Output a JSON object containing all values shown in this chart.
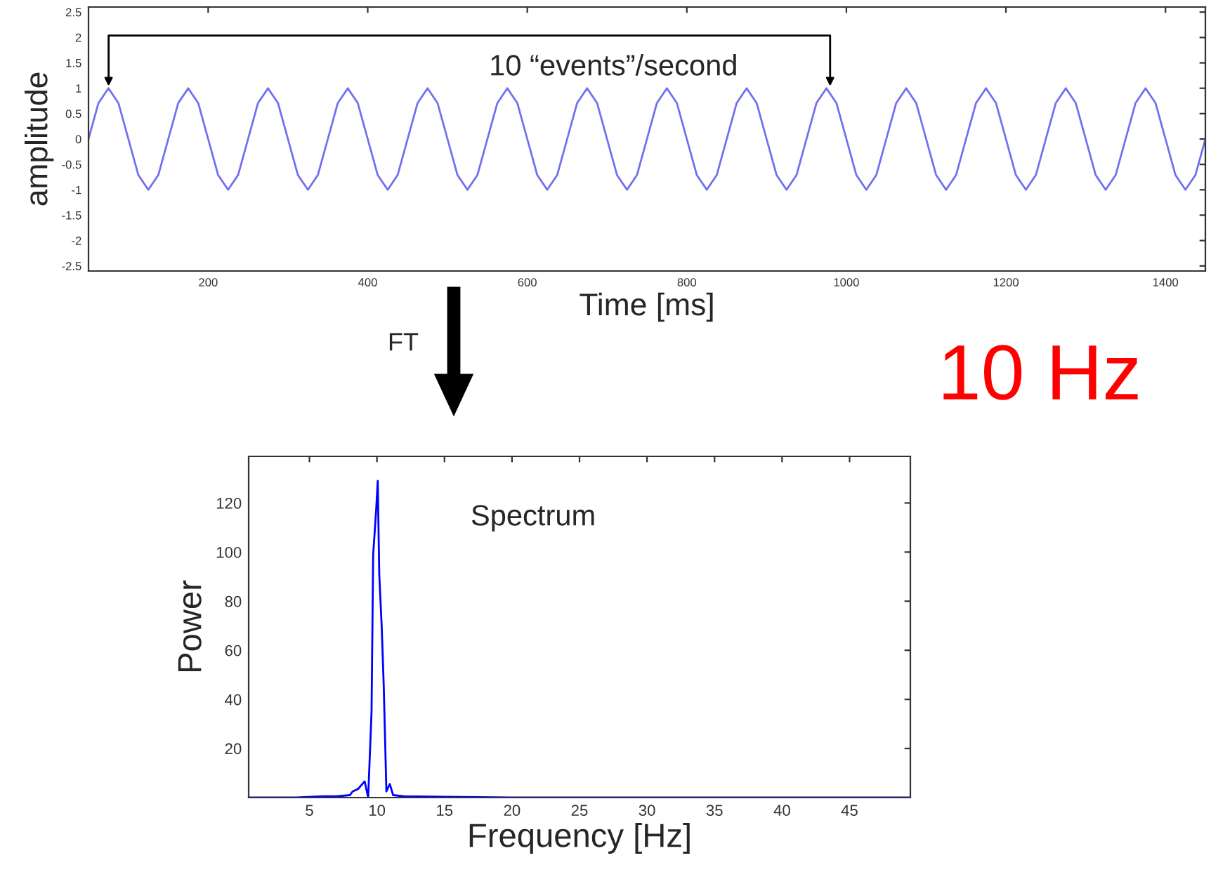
{
  "chart_data": [
    {
      "type": "line",
      "xlabel": "Time [ms]",
      "ylabel": "amplitude",
      "x": [
        50,
        62.5,
        75,
        87.5,
        100,
        112.5,
        125,
        137.5,
        150,
        162.5,
        175,
        187.5,
        200,
        212.5,
        225,
        237.5,
        250,
        262.5,
        275,
        287.5,
        300,
        312.5,
        325,
        337.5,
        350,
        362.5,
        375,
        387.5,
        400,
        412.5,
        425,
        437.5,
        450,
        462.5,
        475,
        487.5,
        500,
        512.5,
        525,
        537.5,
        550,
        562.5,
        575,
        587.5,
        600,
        612.5,
        625,
        637.5,
        650,
        662.5,
        675,
        687.5,
        700,
        712.5,
        725,
        737.5,
        750,
        762.5,
        775,
        787.5,
        800,
        812.5,
        825,
        837.5,
        850,
        862.5,
        875,
        887.5,
        900,
        912.5,
        925,
        937.5,
        950,
        962.5,
        975,
        987.5,
        1000,
        1012.5,
        1025,
        1037.5,
        1050,
        1062.5,
        1075,
        1087.5,
        1100,
        1112.5,
        1125,
        1137.5,
        1150,
        1162.5,
        1175,
        1187.5,
        1200,
        1212.5,
        1225,
        1237.5,
        1250,
        1262.5,
        1275,
        1287.5,
        1300,
        1312.5,
        1325,
        1337.5,
        1350,
        1362.5,
        1375,
        1387.5,
        1400,
        1412.5,
        1425,
        1437.5,
        1450
      ],
      "series": [
        {
          "color": "#7070f0",
          "values": [
            0,
            0.71,
            1,
            0.71,
            0,
            -0.71,
            -1,
            -0.71,
            0,
            0.71,
            1,
            0.71,
            0,
            -0.71,
            -1,
            -0.71,
            0,
            0.71,
            1,
            0.71,
            0,
            -0.71,
            -1,
            -0.71,
            0,
            0.71,
            1,
            0.71,
            0,
            -0.71,
            -1,
            -0.71,
            0,
            0.71,
            1,
            0.71,
            0,
            -0.71,
            -1,
            -0.71,
            0,
            0.71,
            1,
            0.71,
            0,
            -0.71,
            -1,
            -0.71,
            0,
            0.71,
            1,
            0.71,
            0,
            -0.71,
            -1,
            -0.71,
            0,
            0.71,
            1,
            0.71,
            0,
            -0.71,
            -1,
            -0.71,
            0,
            0.71,
            1,
            0.71,
            0,
            -0.71,
            -1,
            -0.71,
            0,
            0.71,
            1,
            0.71,
            0,
            -0.71,
            -1,
            -0.71,
            0,
            0.71,
            1,
            0.71,
            0,
            -0.71,
            -1,
            -0.71,
            0,
            0.71,
            1,
            0.71,
            0,
            -0.71,
            -1,
            -0.71,
            0,
            0.71,
            1,
            0.71,
            0,
            -0.71,
            -1,
            -0.71,
            0,
            0.71,
            1,
            0.71,
            0,
            -0.71,
            -1,
            -0.71,
            0
          ]
        }
      ],
      "xlim": [
        50,
        1450
      ],
      "xticks": [
        200,
        400,
        600,
        800,
        1000,
        1200,
        1400
      ],
      "ylim": [
        -2.6,
        2.6
      ],
      "yticks": [
        -2.5,
        -2,
        -1.5,
        -1,
        -0.5,
        0,
        0.5,
        1,
        1.5,
        2,
        2.5
      ],
      "grid": false,
      "legend": false,
      "annotations": [
        "10 “events”/second",
        "FT",
        "10 Hz"
      ]
    },
    {
      "type": "line",
      "xlabel": "Frequency [Hz]",
      "ylabel": "Power",
      "x": [
        0.5,
        2,
        4,
        6,
        7,
        8,
        8.2,
        8.6,
        9.09,
        9.35,
        9.6,
        9.72,
        9.94,
        10.06,
        10.17,
        10.35,
        10.5,
        10.7,
        10.95,
        11.2,
        12,
        15,
        20,
        30,
        49.5
      ],
      "series": [
        {
          "color": "#0000ff",
          "values": [
            0,
            0,
            0,
            0.5,
            0.5,
            1,
            2.5,
            3.5,
            6.6,
            0,
            35,
            99,
            117,
            129,
            91,
            70,
            46,
            2.5,
            5.5,
            1,
            0.5,
            0.3,
            0,
            0,
            0
          ]
        }
      ],
      "xlim": [
        0.5,
        49.5
      ],
      "xticks": [
        5,
        10,
        15,
        20,
        25,
        30,
        35,
        40,
        45
      ],
      "ylim": [
        0,
        139
      ],
      "yticks": [
        20,
        40,
        60,
        80,
        100,
        120
      ],
      "grid": false,
      "legend": false,
      "annotations": [
        "Spectrum"
      ]
    }
  ]
}
